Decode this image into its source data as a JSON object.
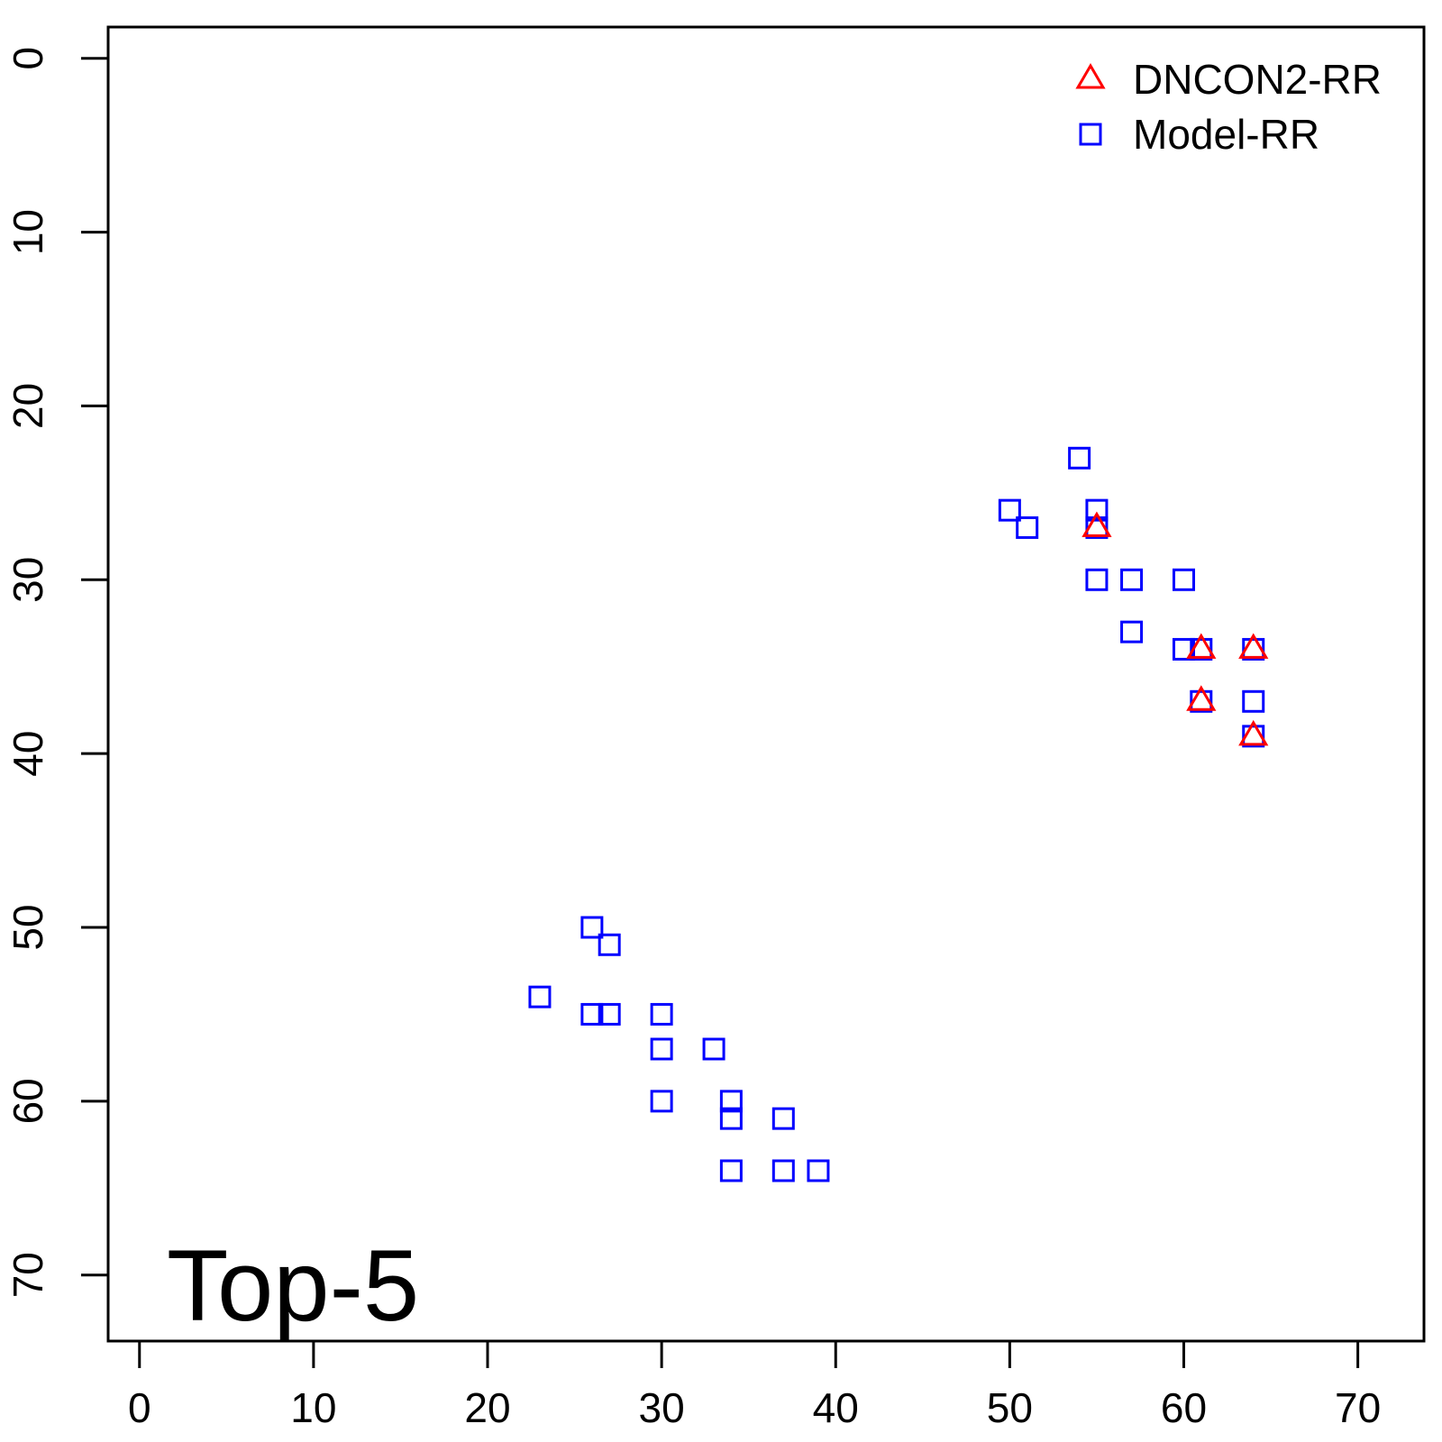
{
  "chart_data": {
    "type": "scatter",
    "title": "",
    "xlabel": "",
    "ylabel": "",
    "annotation": "Top-5",
    "xlim": [
      -1.8,
      73.8
    ],
    "ylim": [
      -1.8,
      73.8
    ],
    "y_inverted": true,
    "xticks": [
      0,
      10,
      20,
      30,
      40,
      50,
      60,
      70
    ],
    "yticks": [
      0,
      10,
      20,
      30,
      40,
      50,
      60,
      70
    ],
    "grid": false,
    "legend_position": "top-right",
    "series": [
      {
        "name": "DNCON2-RR",
        "marker": "triangle",
        "color": "#ff0000",
        "points": [
          [
            55,
            27
          ],
          [
            61,
            34
          ],
          [
            64,
            34
          ],
          [
            61,
            37
          ],
          [
            64,
            39
          ]
        ]
      },
      {
        "name": "Model-RR",
        "marker": "square",
        "color": "#0000ff",
        "points": [
          [
            54,
            23
          ],
          [
            50,
            26
          ],
          [
            55,
            26
          ],
          [
            51,
            27
          ],
          [
            55,
            27
          ],
          [
            55,
            30
          ],
          [
            57,
            30
          ],
          [
            60,
            30
          ],
          [
            57,
            33
          ],
          [
            60,
            34
          ],
          [
            61,
            34
          ],
          [
            64,
            34
          ],
          [
            61,
            37
          ],
          [
            64,
            37
          ],
          [
            64,
            39
          ],
          [
            26,
            50
          ],
          [
            27,
            51
          ],
          [
            23,
            54
          ],
          [
            26,
            55
          ],
          [
            27,
            55
          ],
          [
            30,
            55
          ],
          [
            30,
            57
          ],
          [
            33,
            57
          ],
          [
            30,
            60
          ],
          [
            34,
            60
          ],
          [
            34,
            61
          ],
          [
            37,
            61
          ],
          [
            34,
            64
          ],
          [
            37,
            64
          ],
          [
            39,
            64
          ]
        ]
      }
    ]
  }
}
